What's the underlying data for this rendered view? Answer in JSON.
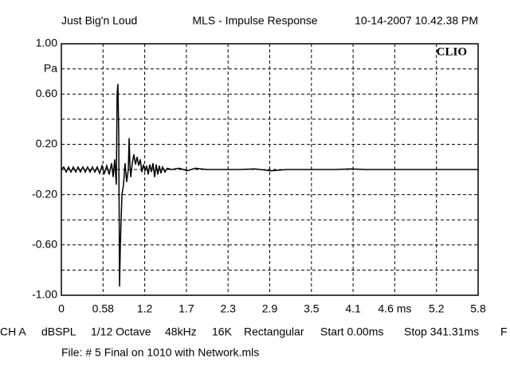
{
  "chart_data": {
    "type": "line",
    "header": [
      "Just Big'n Loud",
      "MLS - Impulse Response",
      "10-14-2007 10.42.38 PM"
    ],
    "logo": "CLIO",
    "y_unit": "Pa",
    "xlim": [
      0,
      5.8
    ],
    "ylim": [
      -1,
      1
    ],
    "xticks": [
      0,
      0.58,
      {
        "value": 1.16,
        "label": "1.2"
      },
      {
        "value": 1.74,
        "label": "1.7"
      },
      {
        "value": 2.32,
        "label": "2.3"
      },
      2.9,
      {
        "value": 3.48,
        "label": "3.5"
      },
      {
        "value": 4.06,
        "label": "4.1"
      },
      {
        "value": 4.64,
        "label": "4.6 ms"
      },
      {
        "value": 5.22,
        "label": "5.2"
      },
      5.8
    ],
    "yticks": [
      {
        "value": 1,
        "label": "1.00"
      },
      {
        "value": 0.6,
        "label": "0.60"
      },
      {
        "value": 0.2,
        "label": "0.20"
      },
      {
        "value": -0.2,
        "label": "-0.20"
      },
      {
        "value": -0.6,
        "label": "-0.60"
      },
      {
        "value": -1,
        "label": "-1.00"
      }
    ],
    "y_minor_ticks": [
      0.8,
      0.4,
      0,
      -0.4,
      -0.8
    ],
    "grid": true,
    "series": [
      {
        "color": "#000000",
        "x": [
          0,
          0.033,
          0.067,
          0.1,
          0.133,
          0.166,
          0.2,
          0.233,
          0.266,
          0.299,
          0.333,
          0.366,
          0.399,
          0.433,
          0.466,
          0.499,
          0.532,
          0.566,
          0.599,
          0.632,
          0.665,
          0.699,
          0.721,
          0.743,
          0.765,
          0.776,
          0.787,
          0.798,
          0.81,
          0.821,
          0.843,
          0.865,
          0.887,
          0.909,
          0.932,
          0.943,
          0.954,
          0.965,
          0.987,
          1.009,
          1.031,
          1.054,
          1.076,
          1.098,
          1.12,
          1.142,
          1.164,
          1.187,
          1.209,
          1.231,
          1.253,
          1.275,
          1.298,
          1.32,
          1.342,
          1.364,
          1.386,
          1.408,
          1.442,
          1.475,
          1.53,
          1.641,
          1.752,
          1.863,
          2.029,
          2.251,
          2.473,
          2.695,
          2.917,
          3.139,
          3.36,
          3.582,
          3.804,
          4.026,
          4.248,
          4.47,
          4.691,
          4.913,
          5.135,
          5.357,
          5.579,
          5.8
        ],
        "values": [
          0,
          0.02,
          -0.02,
          0.02,
          -0.02,
          0.02,
          -0.02,
          0.02,
          -0.02,
          0.02,
          -0.02,
          0.02,
          -0.02,
          0.02,
          -0.02,
          0.02,
          -0.03,
          0.03,
          -0.03,
          0.03,
          -0.04,
          0.05,
          -0.06,
          0.08,
          -0.12,
          0.6,
          0.68,
          0.3,
          -0.93,
          -0.6,
          -0.2,
          -0.12,
          0.05,
          -0.1,
          0,
          0.25,
          0.05,
          -0.06,
          0.05,
          0.12,
          0.04,
          0.1,
          0.03,
          0.08,
          -0.02,
          0.04,
          -0.01,
          0.03,
          -0.04,
          0.04,
          -0.02,
          0.05,
          -0.06,
          0.04,
          -0.04,
          0.03,
          -0.03,
          0.02,
          -0.02,
          0.01,
          0,
          0.01,
          -0.01,
          0.01,
          0,
          0,
          0,
          0.005,
          -0.01,
          0,
          0,
          0,
          0,
          0.005,
          0,
          0,
          0,
          0,
          0,
          0,
          0,
          0
        ]
      }
    ],
    "footer": [
      "CH A",
      "dBSPL",
      "1/12 Octave",
      "48kHz",
      "16K",
      "Rectangular",
      "Start 0.00ms",
      "Stop 341.31ms",
      "F"
    ],
    "file": "File: # 5 Final on 1010 with Network.mls"
  }
}
